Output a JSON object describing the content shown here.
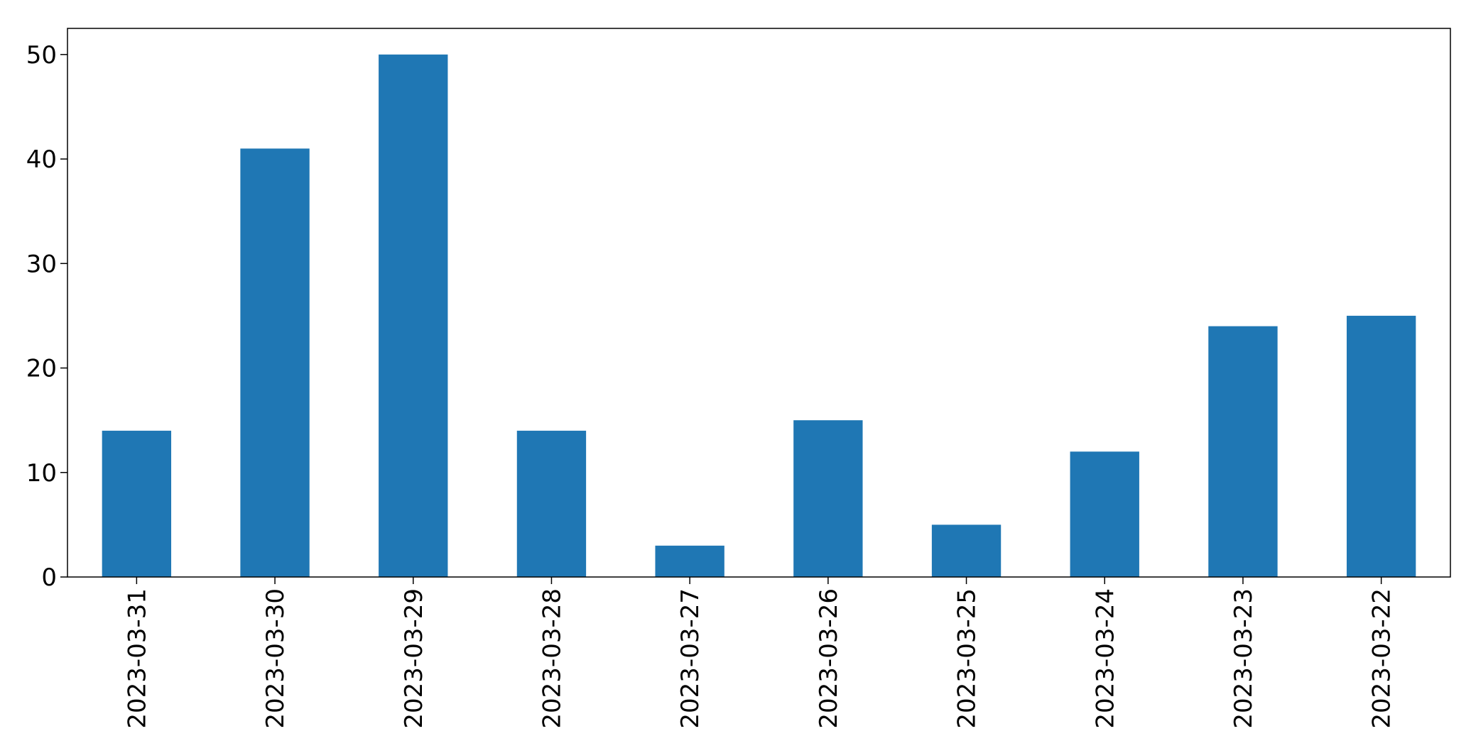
{
  "chart_data": {
    "type": "bar",
    "categories": [
      "2023-03-31",
      "2023-03-30",
      "2023-03-29",
      "2023-03-28",
      "2023-03-27",
      "2023-03-26",
      "2023-03-25",
      "2023-03-24",
      "2023-03-23",
      "2023-03-22"
    ],
    "values": [
      14,
      41,
      50,
      14,
      3,
      15,
      5,
      12,
      24,
      25
    ],
    "title": "",
    "xlabel": "",
    "ylabel": "",
    "ylim": [
      0,
      52.5
    ],
    "yticks": [
      0,
      10,
      20,
      30,
      40,
      50
    ],
    "grid": false,
    "bar_color": "#1f77b4",
    "x_tick_rotation": "vertical"
  }
}
